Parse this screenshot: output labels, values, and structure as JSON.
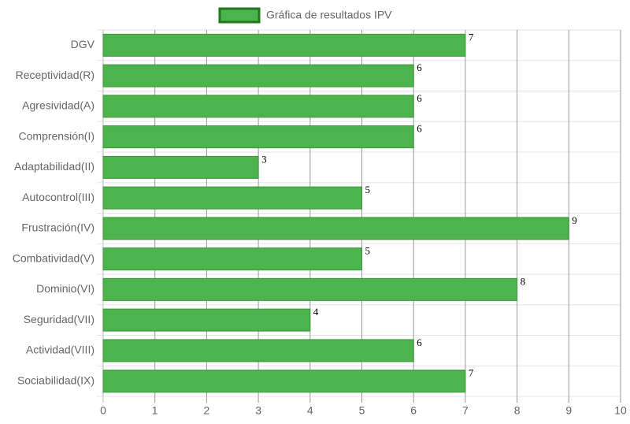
{
  "chart_data": {
    "type": "hbar",
    "legend": "Gráfica de resultados IPV",
    "categories": [
      "DGV",
      "Receptividad(R)",
      "Agresividad(A)",
      "Comprensión(I)",
      "Adaptabilidad(II)",
      "Autocontrol(III)",
      "Frustración(IV)",
      "Combatividad(V)",
      "Dominio(VI)",
      "Seguridad(VII)",
      "Actividad(VIII)",
      "Sociabilidad(IX)"
    ],
    "values": [
      7,
      6,
      6,
      6,
      3,
      5,
      9,
      5,
      8,
      4,
      6,
      7
    ],
    "color": "#4db34d",
    "border_color": "#3d963d",
    "xlim": [
      0,
      10
    ],
    "xticks": [
      0,
      1,
      2,
      3,
      4,
      5,
      6,
      7,
      8,
      9,
      10
    ],
    "grid": true
  }
}
